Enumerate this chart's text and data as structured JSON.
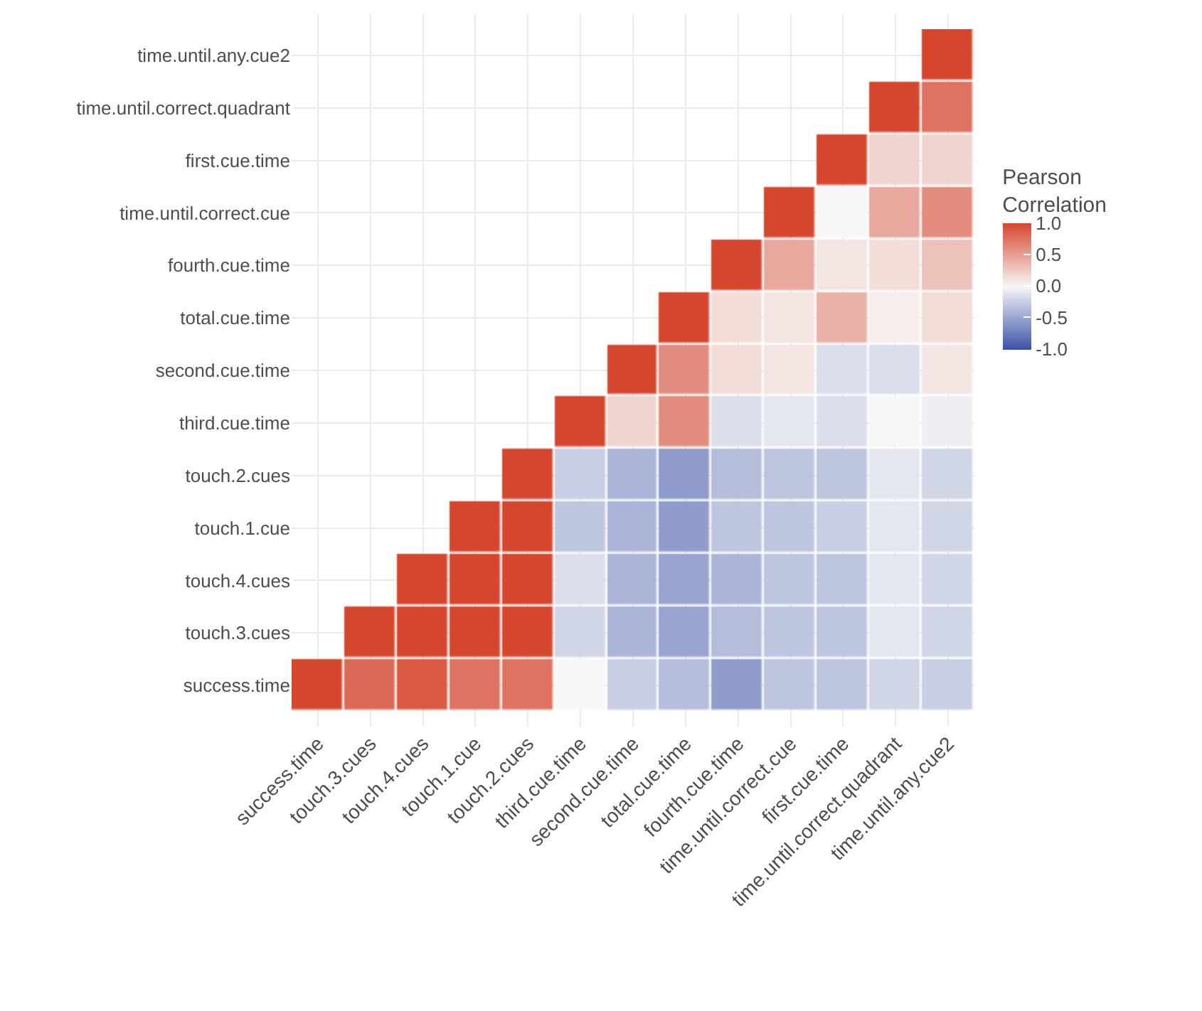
{
  "chart_data": {
    "type": "heatmap",
    "clabel": "Pearson\nCorrelation",
    "categories": [
      "success.time",
      "touch.3.cues",
      "touch.4.cues",
      "touch.1.cue",
      "touch.2.cues",
      "third.cue.time",
      "second.cue.time",
      "total.cue.time",
      "fourth.cue.time",
      "time.until.correct.cue",
      "first.cue.time",
      "time.until.correct.quadrant",
      "time.until.any.cue2"
    ],
    "y_categories": [
      "time.until.any.cue2",
      "time.until.correct.quadrant",
      "first.cue.time",
      "time.until.correct.cue",
      "fourth.cue.time",
      "total.cue.time",
      "second.cue.time",
      "third.cue.time",
      "touch.2.cues",
      "touch.1.cue",
      "touch.4.cues",
      "touch.3.cues",
      "success.time"
    ],
    "cells": [
      [
        null,
        null,
        null,
        null,
        null,
        null,
        null,
        null,
        null,
        null,
        null,
        null,
        1
      ],
      [
        null,
        null,
        null,
        null,
        null,
        null,
        null,
        null,
        null,
        null,
        null,
        1,
        0.75
      ],
      [
        null,
        null,
        null,
        null,
        null,
        null,
        null,
        null,
        null,
        null,
        1,
        0.2,
        0.2
      ],
      [
        null,
        null,
        null,
        null,
        null,
        null,
        null,
        null,
        null,
        1,
        0.0,
        0.45,
        0.6
      ],
      [
        null,
        null,
        null,
        null,
        null,
        null,
        null,
        null,
        1,
        0.45,
        0.1,
        0.15,
        0.3
      ],
      [
        null,
        null,
        null,
        null,
        null,
        null,
        null,
        1,
        0.15,
        0.1,
        0.4,
        0.05,
        0.15
      ],
      [
        null,
        null,
        null,
        null,
        null,
        null,
        1,
        0.6,
        0.15,
        0.1,
        -0.15,
        -0.15,
        0.1
      ],
      [
        null,
        null,
        null,
        null,
        null,
        1,
        0.2,
        0.6,
        -0.15,
        -0.1,
        -0.15,
        0.0,
        -0.05
      ],
      [
        null,
        null,
        null,
        null,
        1,
        -0.25,
        -0.4,
        -0.55,
        -0.35,
        -0.3,
        -0.3,
        -0.1,
        -0.2
      ],
      [
        null,
        null,
        null,
        1,
        1,
        -0.3,
        -0.4,
        -0.55,
        -0.3,
        -0.3,
        -0.25,
        -0.1,
        -0.2
      ],
      [
        null,
        null,
        1,
        1,
        1,
        -0.15,
        -0.4,
        -0.5,
        -0.4,
        -0.3,
        -0.3,
        -0.1,
        -0.2
      ],
      [
        null,
        1,
        1,
        1,
        1,
        -0.2,
        -0.4,
        -0.5,
        -0.35,
        -0.3,
        -0.3,
        -0.1,
        -0.2
      ],
      [
        1,
        0.8,
        0.9,
        0.75,
        0.75,
        0.0,
        -0.25,
        -0.35,
        -0.55,
        -0.3,
        -0.3,
        -0.2,
        -0.25
      ]
    ],
    "clim": [
      -1,
      1
    ],
    "cticks": [
      {
        "value": -1,
        "label": "-1.0"
      },
      -0.5,
      {
        "value": 0,
        "label": "0.0"
      },
      0.5,
      {
        "value": 1,
        "label": "1.0"
      }
    ],
    "colors": [
      "#3a52a8",
      "#f7f7f7",
      "#d6472f"
    ],
    "grid": true
  }
}
